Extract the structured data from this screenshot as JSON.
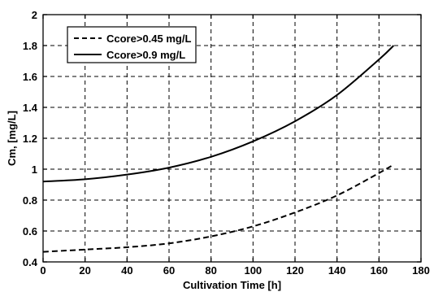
{
  "chart_data": {
    "type": "line",
    "title": "",
    "xlabel": "Cultivation Time [h]",
    "ylabel": "Cm, [mg/L]",
    "xlim": [
      0,
      180
    ],
    "ylim": [
      0.4,
      2
    ],
    "xticks": [
      0,
      20,
      40,
      60,
      80,
      100,
      120,
      140,
      160,
      180
    ],
    "yticks": [
      0.4,
      0.6,
      0.8,
      1,
      1.2,
      1.4,
      1.6,
      1.8,
      2
    ],
    "grid": true,
    "legend_position": "top-left",
    "series": [
      {
        "name": "Ccore>0.45 mg/L",
        "style": "dashed",
        "color": "#000000",
        "x": [
          0,
          20,
          40,
          60,
          80,
          100,
          120,
          140,
          160,
          167
        ],
        "y": [
          0.465,
          0.48,
          0.495,
          0.52,
          0.565,
          0.63,
          0.72,
          0.83,
          0.975,
          1.03
        ]
      },
      {
        "name": "Ccore>0.9 mg/L",
        "style": "solid",
        "color": "#000000",
        "x": [
          0,
          20,
          40,
          60,
          80,
          100,
          120,
          140,
          160,
          167
        ],
        "y": [
          0.92,
          0.935,
          0.965,
          1.01,
          1.08,
          1.18,
          1.31,
          1.48,
          1.71,
          1.8
        ]
      }
    ]
  }
}
